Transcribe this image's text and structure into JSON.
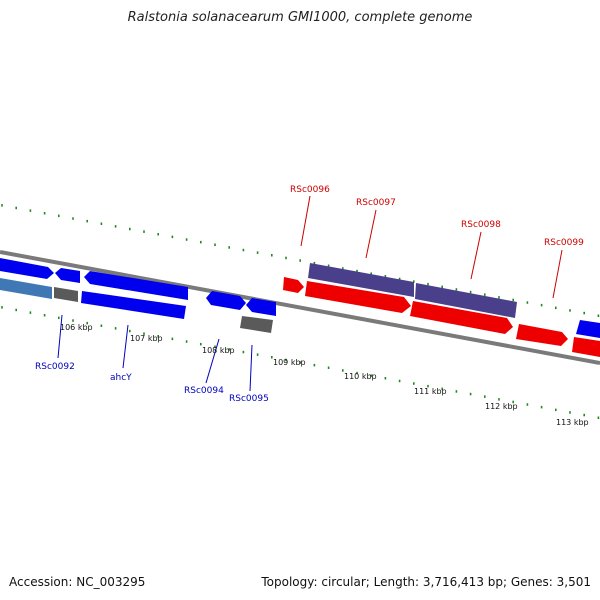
{
  "title": "Ralstonia solanacearum GMI1000, complete genome",
  "footer": {
    "accession": "Accession: NC_003295",
    "summary": "Topology: circular; Length: 3,716,413 bp; Genes: 3,501"
  },
  "colors": {
    "cds_forward": "#0000ee",
    "cds_reverse": "#ee0000",
    "feature_dark": "#4a3f8a",
    "feature_blue": "#3f78b5",
    "feature_gray": "#5a5a5a",
    "tick": "#1f8a1f",
    "label_forward": "#0000bb",
    "label_reverse": "#cc0000",
    "backbone": "#8a8a8a"
  },
  "kbp_ticks": [
    "106 kbp",
    "107 kbp",
    "108 kbp",
    "109 kbp",
    "110 kbp",
    "111 kbp",
    "112 kbp",
    "113 kbp"
  ],
  "gene_labels": {
    "top": [
      "RSc0096",
      "RSc0097",
      "RSc0098",
      "RSc0099"
    ],
    "bottom": [
      "RSc0092",
      "ahcY",
      "RSc0094",
      "RSc0095"
    ]
  }
}
